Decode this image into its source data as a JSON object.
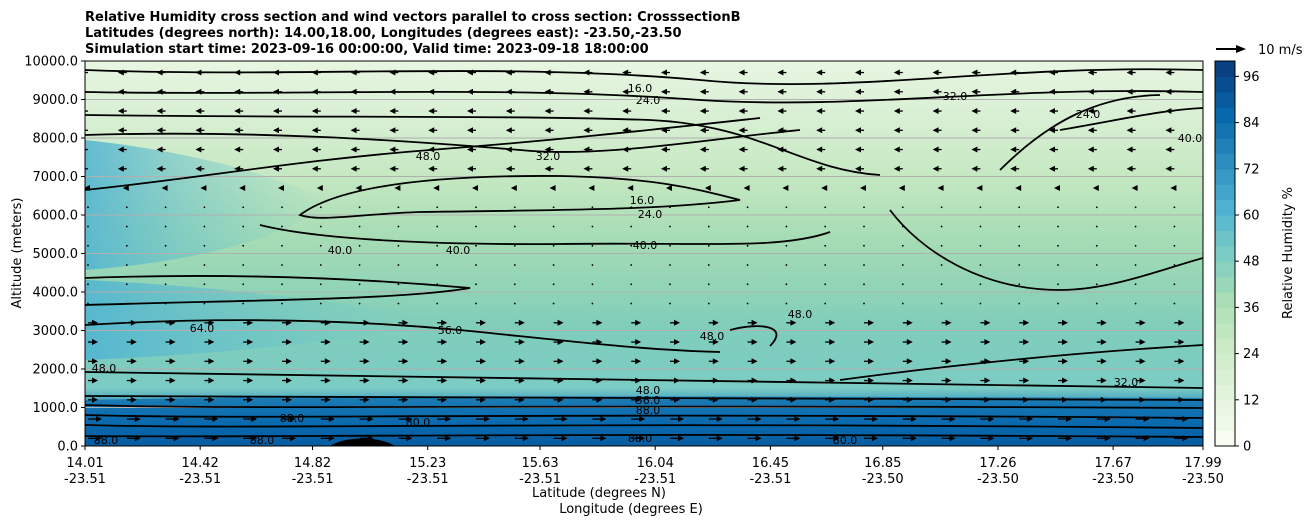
{
  "chart_data": {
    "type": "heatmap",
    "title_lines": [
      "Relative Humidity cross section and wind vectors parallel to cross section: CrosssectionB",
      "Latitudes (degrees north): 14.00,18.00, Longitudes (degrees east): -23.50,-23.50",
      "Simulation start time: 2023-09-16 00:00:00, Valid time: 2023-09-18 18:00:00"
    ],
    "xlabel": "Latitude (degrees N)",
    "xlabel2": "Longitude (degrees E)",
    "ylabel": "Altitude (meters)",
    "ylim": [
      0,
      10000
    ],
    "yticks": [
      "0.0",
      "1000.0",
      "2000.0",
      "3000.0",
      "4000.0",
      "5000.0",
      "6000.0",
      "7000.0",
      "8000.0",
      "9000.0",
      "10000.0"
    ],
    "xticks_lat": [
      "14.01",
      "14.42",
      "14.82",
      "15.23",
      "15.63",
      "16.04",
      "16.45",
      "16.85",
      "17.26",
      "17.67",
      "17.99"
    ],
    "xticks_lon": [
      "-23.51",
      "-23.51",
      "-23.51",
      "-23.51",
      "-23.51",
      "-23.51",
      "-23.51",
      "-23.50",
      "-23.50",
      "-23.50",
      "-23.50"
    ],
    "xlim": [
      14.01,
      17.99
    ],
    "grid": "horizontal",
    "colorbar": {
      "label": "Relative Humidity %",
      "ticks": [
        "0",
        "12",
        "24",
        "36",
        "48",
        "60",
        "72",
        "84",
        "96"
      ],
      "range": [
        0,
        100
      ],
      "colors": [
        "#f7fcf0",
        "#e0f3db",
        "#ccebc5",
        "#a8ddb5",
        "#7bccc4",
        "#4eb3d3",
        "#2b8cbe",
        "#0868ac",
        "#084081"
      ]
    },
    "wind_key": "10 m/s",
    "contour_labels": [
      "16.0",
      "24.0",
      "32.0",
      "40.0",
      "48.0",
      "56.0",
      "64.0",
      "80.0",
      "88.0",
      "96.0"
    ],
    "humidity_profile": [
      {
        "altitude": 0,
        "rh": 92
      },
      {
        "altitude": 500,
        "rh": 90
      },
      {
        "altitude": 1000,
        "rh": 72
      },
      {
        "altitude": 1500,
        "rh": 52
      },
      {
        "altitude": 2000,
        "rh": 46
      },
      {
        "altitude": 3000,
        "rh": 50
      },
      {
        "altitude": 4000,
        "rh": 40
      },
      {
        "altitude": 5000,
        "rh": 36
      },
      {
        "altitude": 6000,
        "rh": 30
      },
      {
        "altitude": 7000,
        "rh": 26
      },
      {
        "altitude": 8000,
        "rh": 28
      },
      {
        "altitude": 9000,
        "rh": 22
      },
      {
        "altitude": 10000,
        "rh": 14
      }
    ]
  }
}
